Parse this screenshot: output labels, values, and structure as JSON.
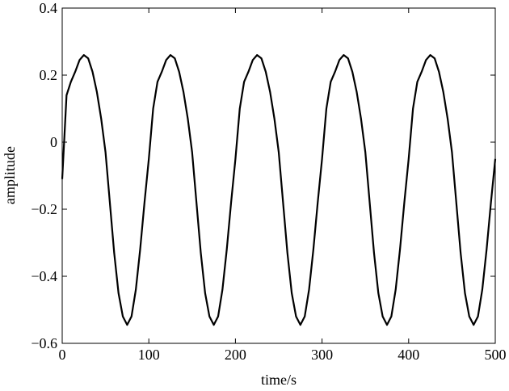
{
  "chart_data": {
    "type": "line",
    "xlabel": "time/s",
    "ylabel": "amplitude",
    "x": [
      0,
      5,
      10,
      15,
      20,
      25,
      30,
      35,
      40,
      45,
      50,
      55,
      60,
      65,
      70,
      75,
      80,
      85,
      90,
      95,
      100,
      105,
      110,
      115,
      120,
      125,
      130,
      135,
      140,
      145,
      150,
      155,
      160,
      165,
      170,
      175,
      180,
      185,
      190,
      195,
      200,
      205,
      210,
      215,
      220,
      225,
      230,
      235,
      240,
      245,
      250,
      255,
      260,
      265,
      270,
      275,
      280,
      285,
      290,
      295,
      300,
      305,
      310,
      315,
      320,
      325,
      330,
      335,
      340,
      345,
      350,
      355,
      360,
      365,
      370,
      375,
      380,
      385,
      390,
      395,
      400,
      405,
      410,
      415,
      420,
      425,
      430,
      435,
      440,
      445,
      450,
      455,
      460,
      465,
      470,
      475,
      480,
      485,
      490,
      495,
      500
    ],
    "series": [
      {
        "name": "amplitude",
        "color": "#000000",
        "values": [
          -0.11,
          0.14,
          0.18,
          0.21,
          0.245,
          0.26,
          0.25,
          0.21,
          0.15,
          0.07,
          -0.03,
          -0.18,
          -0.33,
          -0.45,
          -0.52,
          -0.545,
          -0.52,
          -0.44,
          -0.32,
          -0.18,
          -0.05,
          0.1,
          0.18,
          0.21,
          0.245,
          0.26,
          0.25,
          0.21,
          0.15,
          0.07,
          -0.03,
          -0.18,
          -0.33,
          -0.45,
          -0.52,
          -0.545,
          -0.52,
          -0.44,
          -0.32,
          -0.18,
          -0.05,
          0.1,
          0.18,
          0.21,
          0.245,
          0.26,
          0.25,
          0.21,
          0.15,
          0.07,
          -0.03,
          -0.18,
          -0.33,
          -0.45,
          -0.52,
          -0.545,
          -0.52,
          -0.44,
          -0.32,
          -0.18,
          -0.05,
          0.1,
          0.18,
          0.21,
          0.245,
          0.26,
          0.25,
          0.21,
          0.15,
          0.07,
          -0.03,
          -0.18,
          -0.33,
          -0.45,
          -0.52,
          -0.545,
          -0.52,
          -0.44,
          -0.32,
          -0.18,
          -0.05,
          0.1,
          0.18,
          0.21,
          0.245,
          0.26,
          0.25,
          0.21,
          0.15,
          0.07,
          -0.03,
          -0.18,
          -0.33,
          -0.45,
          -0.52,
          -0.545,
          -0.52,
          -0.44,
          -0.32,
          -0.18,
          -0.05
        ]
      }
    ],
    "xlim": [
      0,
      500
    ],
    "xticks": [
      0,
      100,
      200,
      300,
      400,
      500
    ],
    "ylim": [
      -0.6,
      0.4
    ],
    "yticks": [
      {
        "value": -0.6,
        "label": "−0.6"
      },
      {
        "value": -0.4,
        "label": "−0.4"
      },
      {
        "value": -0.2,
        "label": "−0.2"
      },
      0,
      0.2,
      0.4
    ],
    "grid": false
  }
}
